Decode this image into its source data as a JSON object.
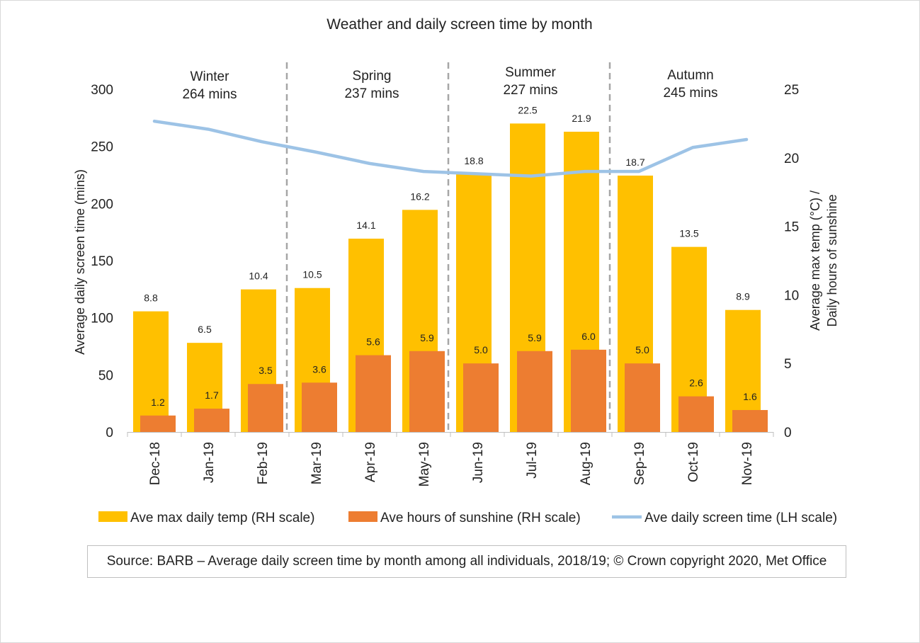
{
  "chart_data": {
    "type": "bar",
    "title": "Weather and daily screen time by month",
    "categories": [
      "Dec-18",
      "Jan-19",
      "Feb-19",
      "Mar-19",
      "Apr-19",
      "May-19",
      "Jun-19",
      "Jul-19",
      "Aug-19",
      "Sep-19",
      "Oct-19",
      "Nov-19"
    ],
    "y_left": {
      "label": "Average daily screen time (mins)",
      "range": [
        0,
        300
      ],
      "ticks": [
        0,
        50,
        100,
        150,
        200,
        250,
        300
      ]
    },
    "y_right": {
      "label_line1": "Average max temp (°C) /",
      "label_line2": "Daily hours of sunshine",
      "range": [
        0,
        25
      ],
      "ticks": [
        0,
        5,
        10,
        15,
        20,
        25
      ]
    },
    "series": [
      {
        "name": "Ave max daily temp (RH scale)",
        "kind": "bar",
        "axis": "right",
        "color": "#FFC000",
        "values": [
          8.8,
          6.5,
          10.4,
          10.5,
          14.1,
          16.2,
          18.8,
          22.5,
          21.9,
          18.7,
          13.5,
          8.9
        ],
        "labels": [
          "8.8",
          "6.5",
          "10.4",
          "10.5",
          "14.1",
          "16.2",
          "18.8",
          "22.5",
          "21.9",
          "18.7",
          "13.5",
          "8.9"
        ]
      },
      {
        "name": "Ave hours of sunshine (RH scale)",
        "kind": "bar",
        "axis": "right",
        "color": "#ED7D31",
        "values": [
          1.2,
          1.7,
          3.5,
          3.6,
          5.6,
          5.9,
          5.0,
          5.9,
          6.0,
          5.0,
          2.6,
          1.6
        ],
        "labels": [
          "1.2",
          "1.7",
          "3.5",
          "3.6",
          "5.6",
          "5.9",
          "5.0",
          "5.9",
          "6.0",
          "5.0",
          "2.6",
          "1.6"
        ]
      },
      {
        "name": "Ave daily screen time (LH scale)",
        "kind": "line",
        "axis": "left",
        "color": "#9DC3E6",
        "values": [
          272,
          265,
          254,
          245,
          235,
          228,
          226,
          224,
          228,
          228,
          249,
          256
        ]
      }
    ],
    "seasons": [
      {
        "name": "Winter",
        "value": "264 mins"
      },
      {
        "name": "Spring",
        "value": "237 mins"
      },
      {
        "name": "Summer",
        "value": "227 mins"
      },
      {
        "name": "Autumn",
        "value": "245 mins"
      }
    ],
    "legend_position": "bottom",
    "grid": false
  },
  "source": "Source: BARB – Average daily screen time by month among all individuals, 2018/19; © Crown copyright 2020, Met Office"
}
